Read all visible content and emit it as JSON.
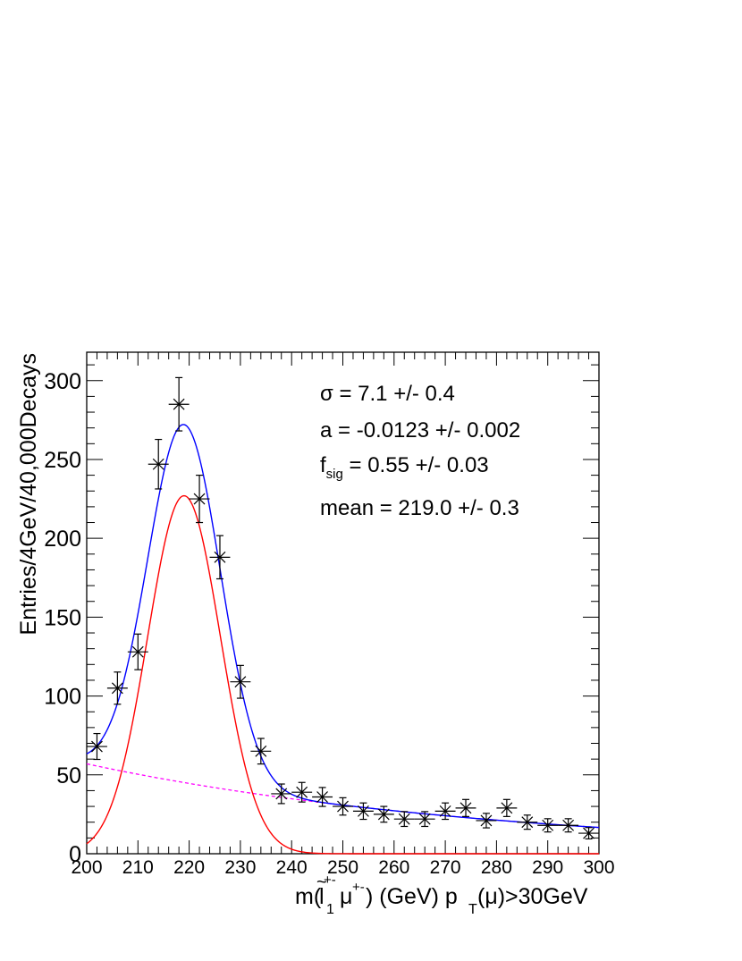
{
  "chart_data": {
    "type": "scatter",
    "xlabel": {
      "main": "m(",
      "lep": "l",
      "lep_sub": "1",
      "lep_sup": "+-",
      "tilde": "~",
      "mu": "μ",
      "mu_sup": "+-",
      "after_mu": ") (GeV) p",
      "pt_sub": "T",
      "tail": "(μ)>30GeV"
    },
    "ylabel": "Entries/4GeV/40,000Decays",
    "xlim": [
      200,
      300
    ],
    "ylim": [
      0,
      318
    ],
    "x_ticks": [
      200,
      210,
      220,
      230,
      240,
      250,
      260,
      270,
      280,
      290,
      300
    ],
    "y_ticks": [
      0,
      50,
      100,
      150,
      200,
      250,
      300
    ],
    "legend": "none",
    "bin_width": 4,
    "data": {
      "x": [
        202,
        206,
        210,
        214,
        218,
        222,
        226,
        230,
        234,
        238,
        242,
        246,
        250,
        254,
        258,
        262,
        266,
        270,
        274,
        278,
        282,
        286,
        290,
        294,
        298
      ],
      "y": [
        68,
        105,
        128,
        247,
        285,
        225,
        188,
        109,
        65,
        38,
        39,
        36,
        30,
        27,
        25,
        22,
        22,
        27,
        29,
        21,
        29,
        20,
        18,
        18,
        13
      ],
      "yerr": [
        8.2,
        10.2,
        11.3,
        15.7,
        16.9,
        15.0,
        13.7,
        10.4,
        8.1,
        6.2,
        6.2,
        6.0,
        5.5,
        5.2,
        5.0,
        4.7,
        4.7,
        5.2,
        5.4,
        4.6,
        5.4,
        4.5,
        4.2,
        4.2,
        3.6
      ]
    },
    "fit": {
      "mean": 219.0,
      "sigma": 7.1,
      "signal_peak": 227,
      "background_intercept": 57,
      "background_slope": -0.0123
    },
    "colors": {
      "total": "#0000ff",
      "signal": "#ff0000",
      "background": "#ff00ff",
      "data": "#000000"
    },
    "annotations": {
      "sigma": {
        "sym": "σ",
        "text": " =  7.1 +/- 0.4"
      },
      "a": {
        "text": "a = -0.0123 +/- 0.002"
      },
      "fsig": {
        "sym": "f",
        "sub": "sig",
        "text": " =  0.55 +/- 0.03"
      },
      "mean": {
        "text": "mean =  219.0 +/- 0.3"
      }
    }
  }
}
